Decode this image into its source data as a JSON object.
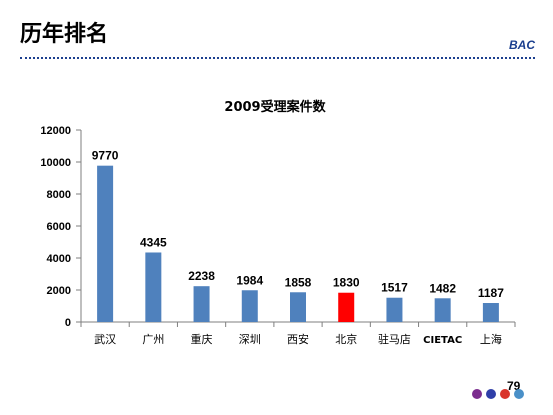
{
  "slide": {
    "title": "历年排名",
    "brand": "BAC",
    "page_number": "79",
    "dot_colors": [
      "#7b2d8e",
      "#2f3fa8",
      "#d9342b",
      "#4a90c8"
    ]
  },
  "chart_data": {
    "type": "bar",
    "title": "2009受理案件数",
    "xlabel": "",
    "ylabel": "",
    "categories": [
      "武汉",
      "广州",
      "重庆",
      "深圳",
      "西安",
      "北京",
      "驻马店",
      "CIETAC",
      "上海"
    ],
    "values": [
      9770,
      4345,
      2238,
      1984,
      1858,
      1830,
      1517,
      1482,
      1187
    ],
    "data_labels": [
      "9770",
      "4345",
      "2238",
      "1984",
      "1858",
      "1830",
      "1517",
      "1482",
      "1187"
    ],
    "ylim": [
      0,
      12000
    ],
    "yticks": [
      0,
      2000,
      4000,
      6000,
      8000,
      10000,
      12000
    ],
    "ytick_labels": [
      "0",
      "2000",
      "4000",
      "6000",
      "8000",
      "10000",
      "12000"
    ],
    "bar_color": "#4f81bd",
    "highlight_color": "#ff0000",
    "highlight_index": 5,
    "grid": false,
    "legend": "none"
  }
}
